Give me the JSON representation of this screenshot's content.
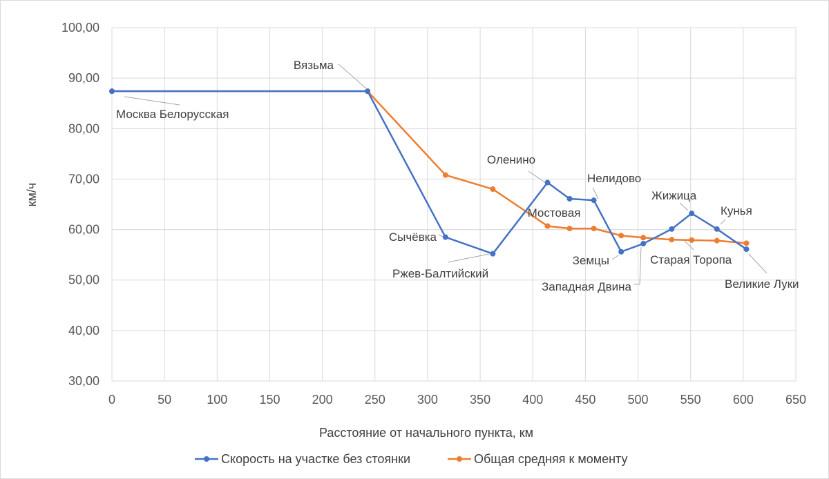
{
  "chart_data": {
    "type": "line",
    "xlabel": "Расстояние от начального пункта, км",
    "ylabel": "км/ч",
    "xlim": [
      0,
      650
    ],
    "ylim": [
      30,
      100
    ],
    "x_ticks": [
      "0",
      "50",
      "100",
      "150",
      "200",
      "250",
      "300",
      "350",
      "400",
      "450",
      "500",
      "550",
      "600",
      "650"
    ],
    "y_ticks": [
      "30,00",
      "40,00",
      "50,00",
      "60,00",
      "70,00",
      "80,00",
      "90,00",
      "100,00"
    ],
    "grid": true,
    "legend_position": "bottom",
    "series": [
      {
        "name": "Скорость на участке без стоянки",
        "color": "#4472C4",
        "points": [
          {
            "x": 0,
            "y": 87.4
          },
          {
            "x": 243,
            "y": 87.4
          },
          {
            "x": 317,
            "y": 58.5
          },
          {
            "x": 362,
            "y": 55.2
          },
          {
            "x": 414,
            "y": 69.3
          },
          {
            "x": 435,
            "y": 66.1
          },
          {
            "x": 458,
            "y": 65.8
          },
          {
            "x": 484,
            "y": 55.6
          },
          {
            "x": 505,
            "y": 57.2
          },
          {
            "x": 532,
            "y": 60.1
          },
          {
            "x": 551,
            "y": 63.2
          },
          {
            "x": 575,
            "y": 60.1
          },
          {
            "x": 603,
            "y": 56.1
          }
        ]
      },
      {
        "name": "Общая средняя к моменту",
        "color": "#ED7D31",
        "points": [
          {
            "x": 0,
            "y": 87.4
          },
          {
            "x": 243,
            "y": 87.4
          },
          {
            "x": 317,
            "y": 70.8
          },
          {
            "x": 362,
            "y": 68.0
          },
          {
            "x": 414,
            "y": 60.7
          },
          {
            "x": 435,
            "y": 60.2
          },
          {
            "x": 458,
            "y": 60.2
          },
          {
            "x": 484,
            "y": 58.8
          },
          {
            "x": 505,
            "y": 58.4
          },
          {
            "x": 532,
            "y": 58.0
          },
          {
            "x": 551,
            "y": 57.9
          },
          {
            "x": 575,
            "y": 57.8
          },
          {
            "x": 603,
            "y": 57.3
          }
        ]
      }
    ],
    "annotations": [
      {
        "label": "Москва Белорусская"
      },
      {
        "label": "Вязьма"
      },
      {
        "label": "Сычёвка"
      },
      {
        "label": "Ржев-Балтийский"
      },
      {
        "label": "Оленино"
      },
      {
        "label": "Мостовая"
      },
      {
        "label": "Нелидово"
      },
      {
        "label": "Земцы"
      },
      {
        "label": "Западная Двина"
      },
      {
        "label": "Старая Торопа"
      },
      {
        "label": "Жижица"
      },
      {
        "label": "Кунья"
      },
      {
        "label": "Великие Луки"
      }
    ]
  }
}
